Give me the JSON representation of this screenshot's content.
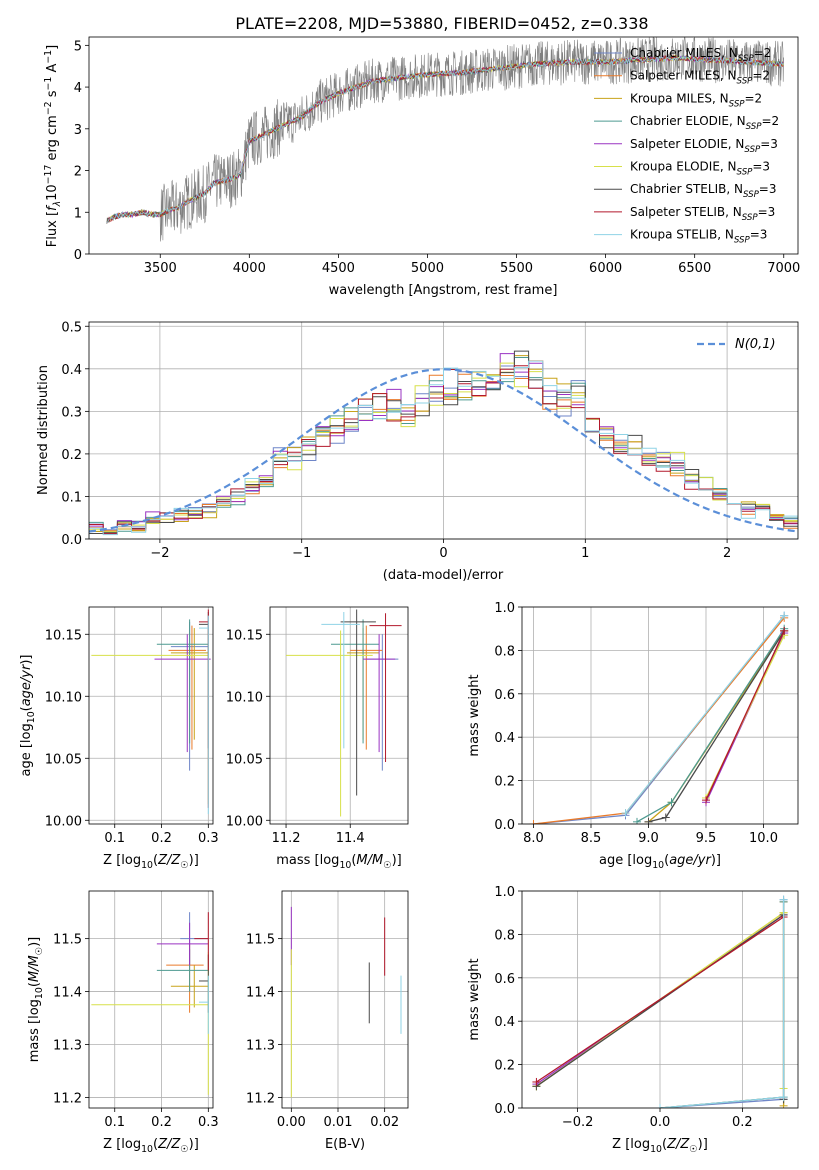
{
  "figure": {
    "title": "PLATE=2208, MJD=53880, FIBERID=0452, z=0.338"
  },
  "colors": {
    "observed": "#808080",
    "normal": "#5b8fd8",
    "models": [
      "#6f86c8",
      "#e97a2a",
      "#c8a31a",
      "#4d9a90",
      "#9a33c2",
      "#d7e04a",
      "#4a4a4a",
      "#b2182b",
      "#8fd3e6"
    ]
  },
  "legend": {
    "models": [
      "Chabrier MILES, N_SSP=2",
      "Salpeter MILES, N_SSP=2",
      "Kroupa MILES, N_SSP=2",
      "Chabrier ELODIE, N_SSP=2",
      "Salpeter ELODIE, N_SSP=3",
      "Kroupa ELODIE, N_SSP=3",
      "Chabrier STELIB, N_SSP=3",
      "Salpeter STELIB, N_SSP=3",
      "Kroupa STELIB, N_SSP=3"
    ],
    "normal": "N(0,1)"
  },
  "chart_data": [
    {
      "id": "spectrum",
      "type": "line",
      "xlabel": "wavelength [Angstrom, rest frame]",
      "ylabel": "Flux [f_λ 10^-17 erg cm^-2 s^-1 A^-1]",
      "xlim": [
        3100,
        7080
      ],
      "ylim": [
        0,
        5.2
      ],
      "xticks": [
        3500,
        4000,
        4500,
        5000,
        5500,
        6000,
        6500,
        7000
      ],
      "yticks": [
        0,
        1,
        2,
        3,
        4,
        5
      ],
      "continuum": {
        "x": [
          3200,
          3250,
          3300,
          3350,
          3400,
          3450,
          3500,
          3550,
          3600,
          3650,
          3700,
          3750,
          3800,
          3850,
          3900,
          3950,
          4000,
          4050,
          4100,
          4150,
          4200,
          4250,
          4300,
          4350,
          4400,
          4500,
          4600,
          4700,
          4800,
          4900,
          5000,
          5200,
          5400,
          5600,
          5800,
          6000,
          6200,
          6400,
          6600,
          6800,
          7000
        ],
        "y": [
          0.8,
          0.9,
          0.95,
          0.95,
          1.0,
          0.95,
          0.95,
          1.05,
          1.1,
          1.25,
          1.35,
          1.45,
          1.7,
          1.75,
          1.8,
          1.9,
          2.7,
          2.8,
          2.9,
          3.0,
          3.1,
          3.2,
          3.3,
          3.5,
          3.65,
          3.85,
          4.0,
          4.15,
          4.2,
          4.25,
          4.3,
          4.35,
          4.45,
          4.55,
          4.6,
          4.6,
          4.65,
          4.7,
          4.65,
          4.6,
          4.55
        ]
      },
      "observed_x_range": [
        3200,
        7000
      ]
    },
    {
      "id": "residuals",
      "type": "bar",
      "xlabel": "(data-model)/error",
      "ylabel": "Normed distribution",
      "xlim": [
        -2.5,
        2.5
      ],
      "ylim": [
        0,
        0.51
      ],
      "xticks": [
        -2,
        -1,
        0,
        1,
        2
      ],
      "yticks": [
        0.0,
        0.1,
        0.2,
        0.3,
        0.4,
        0.5
      ],
      "bin_edges": [
        -2.5,
        -2.4,
        -2.3,
        -2.2,
        -2.1,
        -2.0,
        -1.9,
        -1.8,
        -1.7,
        -1.6,
        -1.5,
        -1.4,
        -1.3,
        -1.2,
        -1.1,
        -1.0,
        -0.9,
        -0.8,
        -0.7,
        -0.6,
        -0.5,
        -0.4,
        -0.3,
        -0.2,
        -0.1,
        0.0,
        0.1,
        0.2,
        0.3,
        0.4,
        0.5,
        0.6,
        0.7,
        0.8,
        0.9,
        1.0,
        1.1,
        1.2,
        1.3,
        1.4,
        1.5,
        1.6,
        1.7,
        1.8,
        1.9,
        2.0,
        2.1,
        2.2,
        2.3,
        2.4,
        2.5
      ],
      "envelope": [
        0.03,
        0.025,
        0.035,
        0.03,
        0.045,
        0.045,
        0.055,
        0.06,
        0.07,
        0.085,
        0.1,
        0.12,
        0.15,
        0.18,
        0.19,
        0.21,
        0.25,
        0.26,
        0.27,
        0.3,
        0.3,
        0.31,
        0.3,
        0.32,
        0.34,
        0.36,
        0.36,
        0.35,
        0.36,
        0.4,
        0.4,
        0.38,
        0.33,
        0.32,
        0.33,
        0.27,
        0.24,
        0.22,
        0.21,
        0.2,
        0.18,
        0.17,
        0.14,
        0.12,
        0.1,
        0.09,
        0.07,
        0.06,
        0.05,
        0.04
      ],
      "normal_curve": "N(0,1) probability density"
    },
    {
      "id": "age-vs-Z",
      "type": "scatter",
      "xlabel": "Z [log10(Z/Z☉)]",
      "ylabel": "age  [log10(age/yr)]",
      "xlim": [
        0.045,
        0.31
      ],
      "ylim": [
        9.997,
        10.172
      ],
      "xticks": [
        0.1,
        0.2,
        0.3
      ],
      "yticks": [
        10.0,
        10.05,
        10.1,
        10.15
      ],
      "points": [
        {
          "x": 0.26,
          "y": 10.14,
          "xerr": [
            0.04,
            0.04
          ],
          "yerr": [
            0.1,
            0.02
          ]
        },
        {
          "x": 0.265,
          "y": 10.137,
          "xerr": [
            0.05,
            0.03
          ],
          "yerr": [
            0.08,
            0.02
          ]
        },
        {
          "x": 0.27,
          "y": 10.135,
          "xerr": [
            0.05,
            0.03
          ],
          "yerr": [
            0.07,
            0.02
          ]
        },
        {
          "x": 0.26,
          "y": 10.142,
          "xerr": [
            0.07,
            0.04
          ],
          "yerr": [
            0.08,
            0.02
          ]
        },
        {
          "x": 0.255,
          "y": 10.13,
          "xerr": [
            0.07,
            0.05
          ],
          "yerr": [
            0.075,
            0.02
          ]
        },
        {
          "x": 0.3,
          "y": 10.133,
          "xerr": [
            0.25,
            0.0
          ],
          "yerr": [
            0.12,
            0.02
          ]
        },
        {
          "x": 0.3,
          "y": 10.158,
          "xerr": [
            0.02,
            0.0
          ],
          "yerr": [
            0.1,
            0.01
          ]
        },
        {
          "x": 0.3,
          "y": 10.16,
          "xerr": [
            0.02,
            0.0
          ],
          "yerr": [
            0.15,
            0.01
          ]
        },
        {
          "x": 0.3,
          "y": 10.155,
          "xerr": [
            0.02,
            0.0
          ],
          "yerr": [
            0.15,
            0.01
          ]
        }
      ]
    },
    {
      "id": "age-vs-mass",
      "type": "scatter",
      "xlabel": "mass [log10(M/M☉)]",
      "ylabel": "",
      "xlim": [
        11.15,
        11.58
      ],
      "ylim": [
        9.997,
        10.172
      ],
      "xticks": [
        11.2,
        11.4
      ],
      "yticks": [
        10.0,
        10.05,
        10.1,
        10.15
      ],
      "points": [
        {
          "x": 11.5,
          "y": 10.13,
          "xerr": [
            0.05,
            0.05
          ],
          "yerr": [
            0.09,
            0.02
          ]
        },
        {
          "x": 11.45,
          "y": 10.137,
          "xerr": [
            0.05,
            0.05
          ],
          "yerr": [
            0.08,
            0.02
          ]
        },
        {
          "x": 11.44,
          "y": 10.135,
          "xerr": [
            0.05,
            0.05
          ],
          "yerr": [
            0.07,
            0.02
          ]
        },
        {
          "x": 11.44,
          "y": 10.142,
          "xerr": [
            0.1,
            0.05
          ],
          "yerr": [
            0.08,
            0.02
          ]
        },
        {
          "x": 11.49,
          "y": 10.13,
          "xerr": [
            0.05,
            0.05
          ],
          "yerr": [
            0.075,
            0.02
          ]
        },
        {
          "x": 11.37,
          "y": 10.133,
          "xerr": [
            0.17,
            0.1
          ],
          "yerr": [
            0.13,
            0.02
          ]
        },
        {
          "x": 11.42,
          "y": 10.16,
          "xerr": [
            0.05,
            0.06
          ],
          "yerr": [
            0.14,
            0.01
          ]
        },
        {
          "x": 11.51,
          "y": 10.157,
          "xerr": [
            0.05,
            0.05
          ],
          "yerr": [
            0.11,
            0.01
          ]
        },
        {
          "x": 11.38,
          "y": 10.158,
          "xerr": [
            0.07,
            0.05
          ],
          "yerr": [
            0.1,
            0.01
          ]
        }
      ]
    },
    {
      "id": "massweight-vs-age",
      "type": "line",
      "xlabel": "age  [log10(age/yr)]",
      "ylabel": "mass weight",
      "xlim": [
        7.9,
        10.3
      ],
      "ylim": [
        0,
        1.0
      ],
      "xticks": [
        8.0,
        8.5,
        9.0,
        9.5,
        10.0
      ],
      "yticks": [
        0.0,
        0.2,
        0.4,
        0.6,
        0.8,
        1.0
      ],
      "series": [
        {
          "x": [
            8.0,
            8.8,
            10.18
          ],
          "y": [
            0.0,
            0.04,
            0.96
          ]
        },
        {
          "x": [
            8.0,
            8.8,
            10.18
          ],
          "y": [
            0.0,
            0.05,
            0.95
          ]
        },
        {
          "x": [
            9.0,
            9.2,
            10.18
          ],
          "y": [
            0.01,
            0.1,
            0.89
          ]
        },
        {
          "x": [
            8.9,
            9.2,
            10.18
          ],
          "y": [
            0.01,
            0.1,
            0.9
          ]
        },
        {
          "x": [
            9.5,
            10.18
          ],
          "y": [
            0.1,
            0.88
          ]
        },
        {
          "x": [
            9.5,
            10.18
          ],
          "y": [
            0.12,
            0.87
          ]
        },
        {
          "x": [
            9.0,
            9.15,
            10.18
          ],
          "y": [
            0.01,
            0.03,
            0.89
          ]
        },
        {
          "x": [
            9.5,
            10.18
          ],
          "y": [
            0.11,
            0.89
          ]
        },
        {
          "x": [
            8.8,
            10.18
          ],
          "y": [
            0.05,
            0.96
          ]
        }
      ]
    },
    {
      "id": "mass-vs-Z",
      "type": "scatter",
      "xlabel": "Z [log10(Z/Z☉)]",
      "ylabel": "mass [log10(M/M☉)]",
      "xlim": [
        0.045,
        0.31
      ],
      "ylim": [
        11.18,
        11.59
      ],
      "xticks": [
        0.1,
        0.2,
        0.3
      ],
      "yticks": [
        11.2,
        11.3,
        11.4,
        11.5
      ],
      "points": [
        {
          "x": 0.26,
          "y": 11.5,
          "xerr": [
            0.02,
            0.04
          ],
          "yerr": [
            0.05,
            0.05
          ]
        },
        {
          "x": 0.26,
          "y": 11.45,
          "xerr": [
            0.05,
            0.03
          ],
          "yerr": [
            0.09,
            0.04
          ]
        },
        {
          "x": 0.27,
          "y": 11.41,
          "xerr": [
            0.05,
            0.03
          ],
          "yerr": [
            0.04,
            0.04
          ]
        },
        {
          "x": 0.26,
          "y": 11.44,
          "xerr": [
            0.07,
            0.04
          ],
          "yerr": [
            0.04,
            0.04
          ]
        },
        {
          "x": 0.26,
          "y": 11.49,
          "xerr": [
            0.07,
            0.04
          ],
          "yerr": [
            0.04,
            0.04
          ]
        },
        {
          "x": 0.3,
          "y": 11.375,
          "xerr": [
            0.25,
            0.0
          ],
          "yerr": [
            0.17,
            0.1
          ]
        },
        {
          "x": 0.3,
          "y": 11.42,
          "xerr": [
            0.02,
            0.0
          ],
          "yerr": [
            0.06,
            0.05
          ]
        },
        {
          "x": 0.3,
          "y": 11.5,
          "xerr": [
            0.03,
            0.0
          ],
          "yerr": [
            0.06,
            0.05
          ]
        },
        {
          "x": 0.3,
          "y": 11.38,
          "xerr": [
            0.02,
            0.0
          ],
          "yerr": [
            0.06,
            0.05
          ]
        }
      ]
    },
    {
      "id": "mass-vs-EBV",
      "type": "scatter",
      "xlabel": "E(B-V)",
      "ylabel": "",
      "xlim": [
        -0.002,
        0.025
      ],
      "ylim": [
        11.18,
        11.59
      ],
      "xticks": [
        0.0,
        0.01,
        0.02
      ],
      "yticks": [
        11.2,
        11.3,
        11.4,
        11.5
      ],
      "points": [
        {
          "x": 0.0,
          "y": 11.5,
          "yerr": [
            0.05,
            0.06
          ],
          "color_index": 4
        },
        {
          "x": 0.0,
          "y": 11.38,
          "yerr": [
            0.18,
            0.1
          ],
          "color_index": 5
        },
        {
          "x": 0.0167,
          "y": 11.4,
          "yerr": [
            0.06,
            0.055
          ],
          "color_index": 6
        },
        {
          "x": 0.02,
          "y": 11.48,
          "yerr": [
            0.05,
            0.06
          ],
          "color_index": 7
        },
        {
          "x": 0.0235,
          "y": 11.37,
          "yerr": [
            0.05,
            0.06
          ],
          "color_index": 8
        }
      ]
    },
    {
      "id": "massweight-vs-Z",
      "type": "line",
      "xlabel": "Z [log10(Z/Z☉)]",
      "ylabel": "mass weight",
      "xlim": [
        -0.335,
        0.335
      ],
      "ylim": [
        0,
        1.0
      ],
      "xticks": [
        -0.2,
        0.0,
        0.2
      ],
      "yticks": [
        0.0,
        0.2,
        0.4,
        0.6,
        0.8,
        1.0
      ],
      "series": [
        {
          "x": [
            0.0,
            0.3,
            0.3
          ],
          "y": [
            0.0,
            0.04,
            0.96
          ]
        },
        {
          "x": [
            0.0,
            0.3,
            0.3
          ],
          "y": [
            0.0,
            0.05,
            0.95
          ]
        },
        {
          "x": [
            -0.3,
            0.3,
            0.3
          ],
          "y": [
            0.1,
            0.9,
            0.01
          ]
        },
        {
          "x": [
            0.0,
            0.3,
            0.3
          ],
          "y": [
            0.0,
            0.05,
            0.95
          ]
        },
        {
          "x": [
            -0.3,
            0.3
          ],
          "y": [
            0.11,
            0.89
          ]
        },
        {
          "x": [
            -0.3,
            0.3,
            0.3
          ],
          "y": [
            0.1,
            0.9,
            0.09
          ]
        },
        {
          "x": [
            -0.3,
            0.3,
            0.3
          ],
          "y": [
            0.1,
            0.89,
            0.04
          ]
        },
        {
          "x": [
            -0.3,
            0.3
          ],
          "y": [
            0.12,
            0.88
          ]
        },
        {
          "x": [
            0.0,
            0.3,
            0.3
          ],
          "y": [
            0.0,
            0.05,
            0.96
          ]
        }
      ]
    }
  ]
}
